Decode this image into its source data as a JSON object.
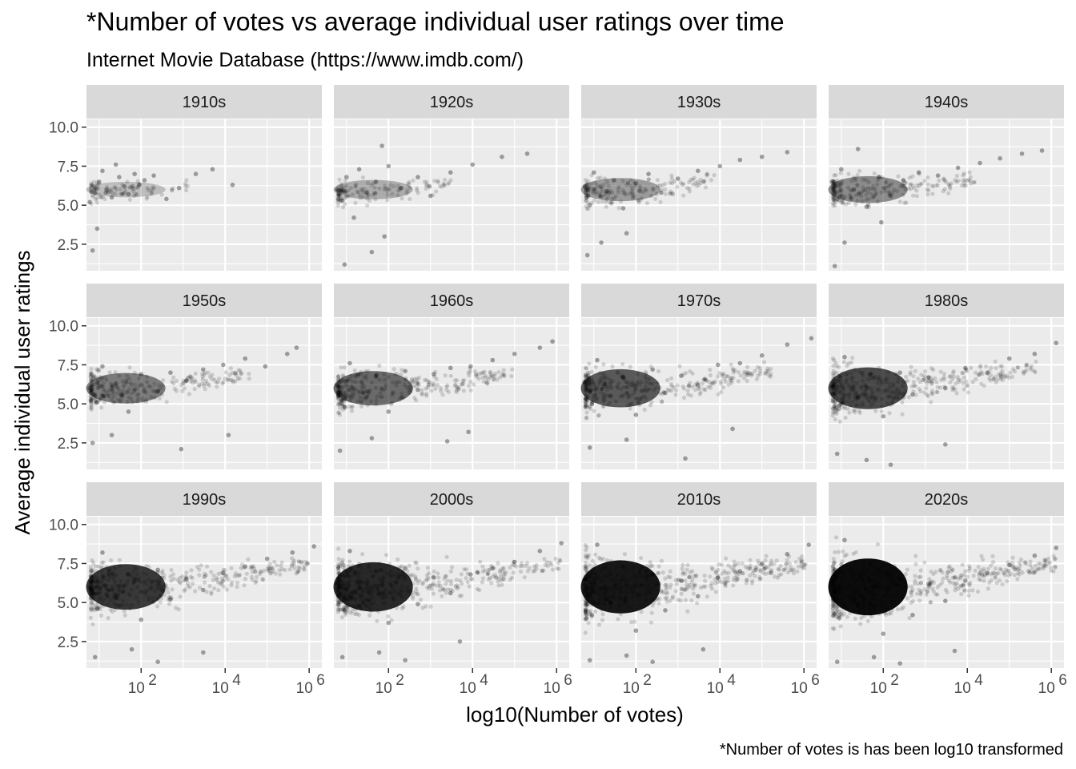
{
  "chart_data": {
    "type": "scatter",
    "title": "*Number of votes vs average individual user ratings over time",
    "subtitle": "Internet Movie Database (https://www.imdb.com/)",
    "caption": "*Number of votes is has been log10 transformed",
    "xlabel": "log10(Number of votes)",
    "ylabel": "Average individual user ratings",
    "x_scale": "log10",
    "xlim": [
      5,
      2000000
    ],
    "ylim": [
      0.8,
      10.5
    ],
    "x_ticks": [
      100,
      10000,
      1000000
    ],
    "y_ticks": [
      2.5,
      5.0,
      7.5,
      10.0
    ],
    "y_tick_labels": [
      "2.5",
      "5.0",
      "7.5",
      "10.0"
    ],
    "grid": true,
    "point_color": "#000000",
    "point_alpha": 0.15,
    "panel_background": "#ebebeb",
    "strip_background": "#d9d9d9",
    "facets": [
      {
        "label": "1910s",
        "points": [
          [
            6,
            5.2
          ],
          [
            8,
            5.8
          ],
          [
            10,
            6.5
          ],
          [
            12,
            7.2
          ],
          [
            15,
            6.0
          ],
          [
            20,
            5.5
          ],
          [
            25,
            7.6
          ],
          [
            30,
            6.8
          ],
          [
            40,
            6.2
          ],
          [
            50,
            5.7
          ],
          [
            70,
            7.0
          ],
          [
            90,
            6.3
          ],
          [
            120,
            6.6
          ],
          [
            200,
            6.9
          ],
          [
            400,
            5.4
          ],
          [
            800,
            6.1
          ],
          [
            2000,
            7.0
          ],
          [
            5000,
            7.3
          ],
          [
            7,
            2.1
          ],
          [
            9,
            3.5
          ],
          [
            15000,
            6.3
          ]
        ]
      },
      {
        "label": "1920s",
        "points": [
          [
            6,
            6.0
          ],
          [
            8,
            5.3
          ],
          [
            10,
            6.8
          ],
          [
            15,
            4.2
          ],
          [
            20,
            7.3
          ],
          [
            30,
            5.8
          ],
          [
            50,
            6.5
          ],
          [
            80,
            3.0
          ],
          [
            100,
            7.5
          ],
          [
            200,
            6.1
          ],
          [
            500,
            6.8
          ],
          [
            1000,
            5.6
          ],
          [
            3000,
            7.1
          ],
          [
            10000,
            7.6
          ],
          [
            50000,
            8.1
          ],
          [
            200000,
            8.3
          ],
          [
            9,
            1.2
          ],
          [
            40,
            2.0
          ],
          [
            70,
            8.8
          ]
        ]
      },
      {
        "label": "1930s",
        "points": [
          [
            6,
            6.2
          ],
          [
            8,
            5.0
          ],
          [
            10,
            7.1
          ],
          [
            20,
            5.9
          ],
          [
            30,
            6.6
          ],
          [
            50,
            4.8
          ],
          [
            100,
            6.4
          ],
          [
            200,
            7.0
          ],
          [
            400,
            5.8
          ],
          [
            1000,
            6.7
          ],
          [
            3000,
            7.2
          ],
          [
            10000,
            7.5
          ],
          [
            30000,
            7.9
          ],
          [
            100000,
            8.1
          ],
          [
            400000,
            8.4
          ],
          [
            7,
            1.8
          ],
          [
            15,
            2.6
          ],
          [
            60,
            3.2
          ]
        ]
      },
      {
        "label": "1940s",
        "points": [
          [
            6,
            6.5
          ],
          [
            8,
            5.4
          ],
          [
            10,
            7.3
          ],
          [
            20,
            6.0
          ],
          [
            40,
            4.9
          ],
          [
            80,
            6.8
          ],
          [
            150,
            5.6
          ],
          [
            300,
            6.6
          ],
          [
            700,
            7.1
          ],
          [
            2000,
            6.9
          ],
          [
            6000,
            7.4
          ],
          [
            20000,
            7.7
          ],
          [
            60000,
            8.0
          ],
          [
            200000,
            8.3
          ],
          [
            600000,
            8.5
          ],
          [
            7,
            1.1
          ],
          [
            12,
            2.6
          ],
          [
            25,
            8.6
          ],
          [
            90,
            3.9
          ]
        ]
      },
      {
        "label": "1950s",
        "points": [
          [
            6,
            6.0
          ],
          [
            9,
            5.1
          ],
          [
            12,
            7.4
          ],
          [
            25,
            6.3
          ],
          [
            50,
            4.5
          ],
          [
            100,
            6.9
          ],
          [
            250,
            5.8
          ],
          [
            500,
            7.0
          ],
          [
            1200,
            6.5
          ],
          [
            3000,
            7.2
          ],
          [
            9000,
            7.5
          ],
          [
            30000,
            7.9
          ],
          [
            90000,
            7.4
          ],
          [
            300000,
            8.2
          ],
          [
            500000,
            8.6
          ],
          [
            7,
            2.5
          ],
          [
            20,
            3.0
          ],
          [
            900,
            2.1
          ],
          [
            12000,
            3.0
          ]
        ]
      },
      {
        "label": "1960s",
        "points": [
          [
            6,
            6.2
          ],
          [
            9,
            4.8
          ],
          [
            12,
            7.6
          ],
          [
            25,
            5.7
          ],
          [
            50,
            6.8
          ],
          [
            100,
            4.5
          ],
          [
            250,
            7.1
          ],
          [
            500,
            5.9
          ],
          [
            1200,
            6.9
          ],
          [
            3000,
            7.3
          ],
          [
            9000,
            7.4
          ],
          [
            30000,
            7.8
          ],
          [
            100000,
            8.2
          ],
          [
            400000,
            8.6
          ],
          [
            800000,
            9.0
          ],
          [
            7,
            2.0
          ],
          [
            40,
            2.8
          ],
          [
            2500,
            2.6
          ],
          [
            8000,
            3.2
          ]
        ]
      },
      {
        "label": "1970s",
        "points": [
          [
            6,
            6.4
          ],
          [
            9,
            5.0
          ],
          [
            12,
            7.8
          ],
          [
            25,
            5.5
          ],
          [
            50,
            6.7
          ],
          [
            100,
            4.3
          ],
          [
            250,
            7.2
          ],
          [
            500,
            5.7
          ],
          [
            1200,
            6.8
          ],
          [
            3000,
            6.2
          ],
          [
            9000,
            7.5
          ],
          [
            30000,
            7.6
          ],
          [
            100000,
            8.1
          ],
          [
            400000,
            8.8
          ],
          [
            1500000,
            9.2
          ],
          [
            8,
            2.2
          ],
          [
            60,
            2.7
          ],
          [
            1500,
            1.5
          ],
          [
            20000,
            3.4
          ]
        ]
      },
      {
        "label": "1980s",
        "points": [
          [
            6,
            6.1
          ],
          [
            9,
            4.9
          ],
          [
            12,
            8.0
          ],
          [
            25,
            5.4
          ],
          [
            50,
            6.9
          ],
          [
            100,
            4.2
          ],
          [
            250,
            7.0
          ],
          [
            500,
            5.6
          ],
          [
            1200,
            6.7
          ],
          [
            3000,
            6.0
          ],
          [
            9000,
            7.3
          ],
          [
            30000,
            7.0
          ],
          [
            100000,
            7.9
          ],
          [
            400000,
            8.2
          ],
          [
            1300000,
            8.9
          ],
          [
            8,
            1.8
          ],
          [
            40,
            1.4
          ],
          [
            150,
            1.1
          ],
          [
            3000,
            2.4
          ]
        ]
      },
      {
        "label": "1990s",
        "points": [
          [
            6,
            6.0
          ],
          [
            9,
            4.6
          ],
          [
            12,
            8.2
          ],
          [
            25,
            5.3
          ],
          [
            50,
            6.8
          ],
          [
            100,
            3.9
          ],
          [
            250,
            7.1
          ],
          [
            500,
            5.2
          ],
          [
            1200,
            6.5
          ],
          [
            3000,
            5.8
          ],
          [
            9000,
            6.9
          ],
          [
            30000,
            7.3
          ],
          [
            100000,
            7.8
          ],
          [
            400000,
            8.2
          ],
          [
            1300000,
            8.6
          ],
          [
            8,
            1.5
          ],
          [
            60,
            2.0
          ],
          [
            250,
            1.2
          ],
          [
            3000,
            1.8
          ]
        ]
      },
      {
        "label": "2000s",
        "points": [
          [
            6,
            6.2
          ],
          [
            9,
            4.5
          ],
          [
            12,
            8.3
          ],
          [
            25,
            5.0
          ],
          [
            50,
            7.0
          ],
          [
            100,
            3.7
          ],
          [
            250,
            7.2
          ],
          [
            500,
            4.9
          ],
          [
            1200,
            6.6
          ],
          [
            3000,
            5.6
          ],
          [
            9000,
            6.8
          ],
          [
            30000,
            7.2
          ],
          [
            100000,
            7.6
          ],
          [
            400000,
            8.3
          ],
          [
            1300000,
            8.8
          ],
          [
            8,
            1.5
          ],
          [
            60,
            1.8
          ],
          [
            250,
            1.3
          ],
          [
            5000,
            2.5
          ]
        ]
      },
      {
        "label": "2010s",
        "points": [
          [
            6,
            6.5
          ],
          [
            9,
            4.2
          ],
          [
            12,
            8.7
          ],
          [
            25,
            5.0
          ],
          [
            50,
            7.3
          ],
          [
            100,
            3.2
          ],
          [
            250,
            6.8
          ],
          [
            500,
            4.5
          ],
          [
            1200,
            6.4
          ],
          [
            3000,
            5.4
          ],
          [
            9000,
            6.6
          ],
          [
            30000,
            7.0
          ],
          [
            100000,
            7.5
          ],
          [
            400000,
            8.1
          ],
          [
            1300000,
            8.7
          ],
          [
            8,
            1.3
          ],
          [
            60,
            1.6
          ],
          [
            250,
            1.2
          ],
          [
            4000,
            2.0
          ]
        ]
      },
      {
        "label": "2020s",
        "points": [
          [
            6,
            6.3
          ],
          [
            9,
            4.0
          ],
          [
            12,
            9.0
          ],
          [
            25,
            4.8
          ],
          [
            50,
            7.5
          ],
          [
            100,
            3.0
          ],
          [
            250,
            6.5
          ],
          [
            500,
            4.2
          ],
          [
            1200,
            6.2
          ],
          [
            3000,
            5.1
          ],
          [
            9000,
            6.4
          ],
          [
            30000,
            6.9
          ],
          [
            100000,
            7.4
          ],
          [
            400000,
            8.0
          ],
          [
            1300000,
            8.5
          ],
          [
            8,
            1.2
          ],
          [
            60,
            1.5
          ],
          [
            250,
            1.1
          ],
          [
            5000,
            1.9
          ]
        ]
      }
    ]
  }
}
